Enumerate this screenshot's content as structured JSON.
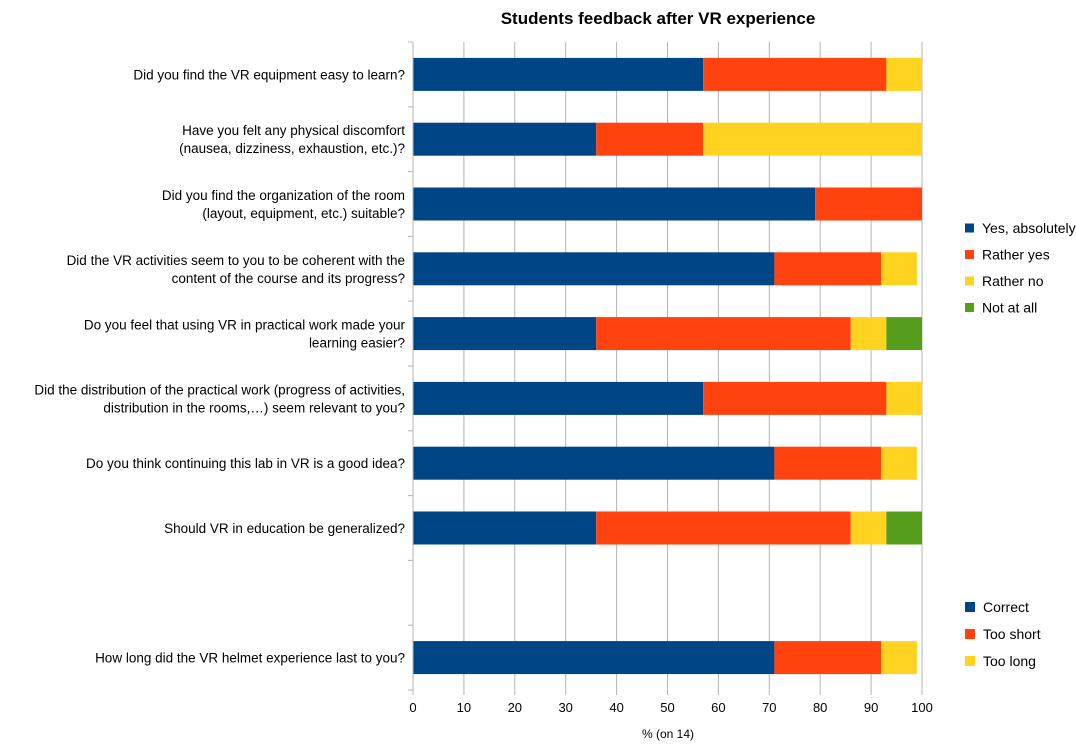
{
  "chart_data": {
    "type": "bar",
    "orientation": "horizontal",
    "stacked": true,
    "title": "Students feedback after VR experience",
    "xlabel": "% (on 14)",
    "ylabel": "",
    "xlim": [
      0,
      100
    ],
    "xticks": [
      "0",
      "10",
      "20",
      "30",
      "40",
      "50",
      "60",
      "70",
      "80",
      "90",
      "100"
    ],
    "grid": true,
    "categories": [
      {
        "lines": [
          "Did you find the VR equipment easy to learn?"
        ],
        "values": [
          57,
          36,
          7,
          0
        ],
        "legend": "feedback"
      },
      {
        "lines": [
          "Have you felt any physical discomfort",
          "(nausea, dizziness, exhaustion, etc.)?"
        ],
        "values": [
          36,
          21,
          43,
          0
        ],
        "legend": "feedback"
      },
      {
        "lines": [
          "Did you find the organization of the room",
          "(layout, equipment, etc.) suitable?"
        ],
        "values": [
          79,
          21,
          0,
          0
        ],
        "legend": "feedback"
      },
      {
        "lines": [
          "Did the VR activities seem to you to be coherent with the",
          "content of the course and its progress?"
        ],
        "values": [
          71,
          21,
          7,
          0
        ],
        "legend": "feedback"
      },
      {
        "lines": [
          "Do you feel that using VR in practical work made your",
          "learning easier?"
        ],
        "values": [
          36,
          50,
          7,
          7
        ],
        "legend": "feedback"
      },
      {
        "lines": [
          "Did the distribution of the practical work (progress of activities,",
          "distribution in the rooms,…) seem relevant to you?"
        ],
        "values": [
          57,
          36,
          7,
          0
        ],
        "legend": "feedback"
      },
      {
        "lines": [
          "Do you think continuing this lab in VR is a good idea?"
        ],
        "values": [
          71,
          21,
          7,
          0
        ],
        "legend": "feedback"
      },
      {
        "lines": [
          "Should VR in education be generalized?"
        ],
        "values": [
          36,
          50,
          7,
          7
        ],
        "legend": "feedback"
      },
      {
        "lines": [],
        "values": [],
        "legend": "none"
      },
      {
        "lines": [
          "How long did the VR helmet experience last to you?"
        ],
        "values": [
          71,
          21,
          7
        ],
        "legend": "duration"
      }
    ],
    "legends": {
      "feedback": {
        "placement": "right-middle",
        "entries": [
          "Yes, absolutely",
          "Rather yes",
          "Rather no",
          "Not at all"
        ]
      },
      "duration": {
        "placement": "right-bottom",
        "entries": [
          "Correct",
          "Too short",
          "Too long"
        ]
      }
    },
    "colors": [
      "#004586",
      "#ff420e",
      "#ffd320",
      "#579d1c"
    ]
  }
}
